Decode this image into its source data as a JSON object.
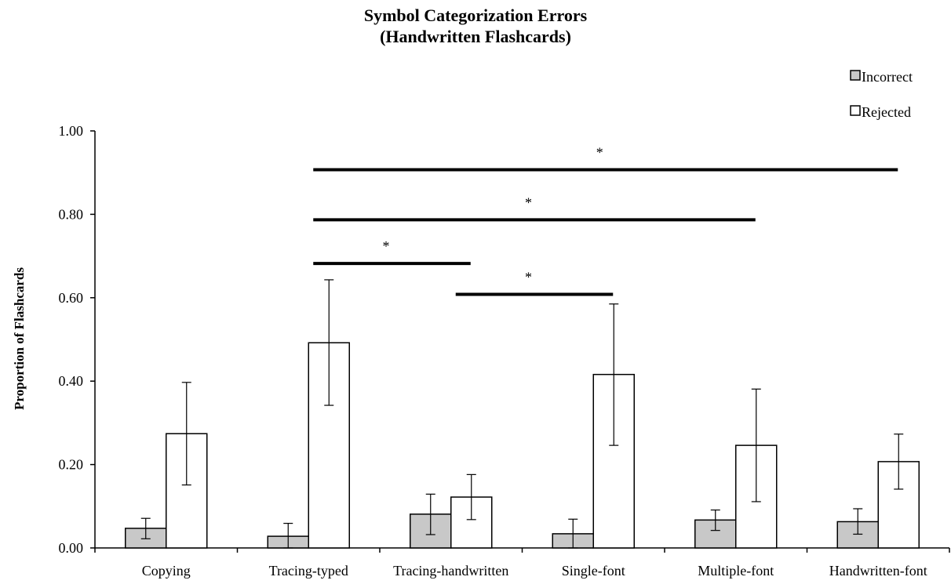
{
  "chart_data": {
    "type": "bar",
    "title": [
      "Symbol Categorization Errors",
      "(Handwritten Flashcards)"
    ],
    "xlabel": "",
    "ylabel": "Proportion of Flashcards",
    "ylim": [
      0,
      1.0
    ],
    "yticks": [
      0.0,
      0.2,
      0.4,
      0.6,
      0.8,
      1.0
    ],
    "ytick_labels": [
      "0.00",
      "0.20",
      "0.40",
      "0.60",
      "0.80",
      "1.00"
    ],
    "categories": [
      "Copying",
      "Tracing-typed",
      "Tracing-handwritten",
      "Single-font",
      "Multiple-font",
      "Handwritten-font"
    ],
    "series": [
      {
        "name": "Incorrect",
        "color": "#c8c8c8",
        "values": [
          0.047,
          0.028,
          0.081,
          0.034,
          0.067,
          0.063
        ],
        "err_low": [
          0.022,
          0.0,
          0.032,
          0.0,
          0.042,
          0.033
        ],
        "err_high": [
          0.071,
          0.059,
          0.129,
          0.069,
          0.091,
          0.094
        ]
      },
      {
        "name": "Rejected",
        "color": "#ffffff",
        "values": [
          0.274,
          0.492,
          0.122,
          0.416,
          0.246,
          0.207
        ],
        "err_low": [
          0.151,
          0.342,
          0.068,
          0.246,
          0.111,
          0.141
        ],
        "err_high": [
          0.397,
          0.643,
          0.176,
          0.585,
          0.381,
          0.273
        ]
      }
    ],
    "significance": [
      {
        "from": "Tracing-typed",
        "to": "Tracing-handwritten",
        "y": 0.682,
        "label": "*"
      },
      {
        "from": "Tracing-handwritten",
        "to": "Single-font",
        "y": 0.608,
        "label": "*"
      },
      {
        "from": "Tracing-typed",
        "to": "Multiple-font",
        "y": 0.787,
        "label": "*"
      },
      {
        "from": "Tracing-typed",
        "to": "Handwritten-font",
        "y": 0.907,
        "label": "*"
      }
    ],
    "legend_position": "top-right",
    "grid": false
  }
}
